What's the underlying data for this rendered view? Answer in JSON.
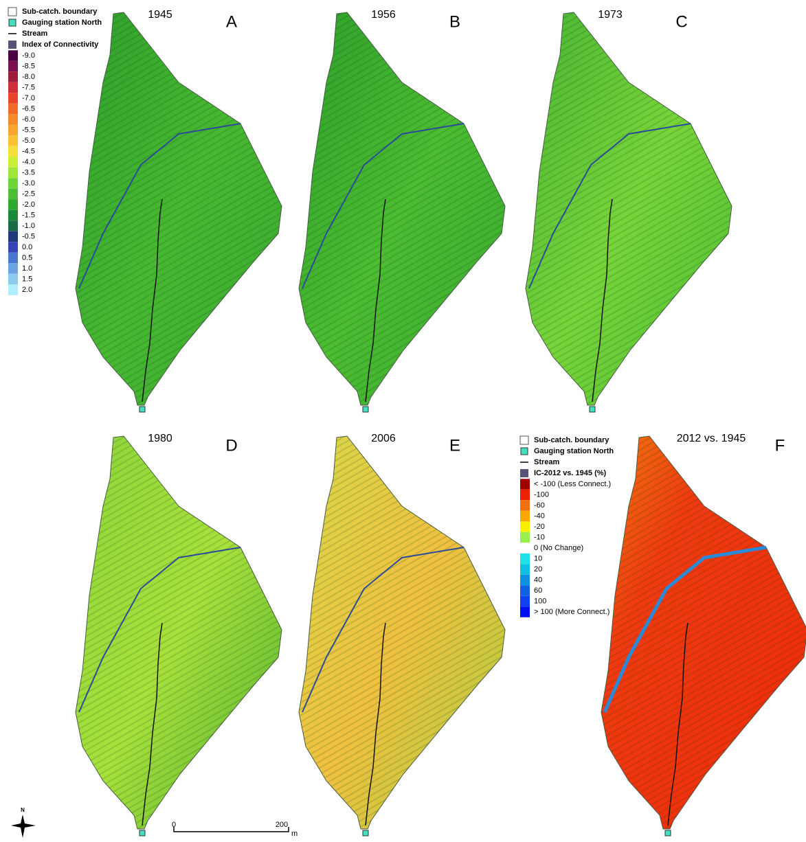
{
  "panels": [
    {
      "year": "1945",
      "letter": "A"
    },
    {
      "year": "1956",
      "letter": "B"
    },
    {
      "year": "1973",
      "letter": "C"
    },
    {
      "year": "1980",
      "letter": "D"
    },
    {
      "year": "2006",
      "letter": "E"
    },
    {
      "year": "2012 vs. 1945",
      "letter": "F"
    }
  ],
  "legend_ic": {
    "boundary": "Sub-catch. boundary",
    "station": "Gauging station North",
    "stream": "Stream",
    "title": "Index of Connectivity",
    "items": [
      {
        "label": "-9.0",
        "color": "#4b0045"
      },
      {
        "label": "-8.5",
        "color": "#7a1050"
      },
      {
        "label": "-8.0",
        "color": "#a01c3c"
      },
      {
        "label": "-7.5",
        "color": "#d0303a"
      },
      {
        "label": "-7.0",
        "color": "#e8452c"
      },
      {
        "label": "-6.5",
        "color": "#f26a2a"
      },
      {
        "label": "-6.0",
        "color": "#f58a2b"
      },
      {
        "label": "-5.5",
        "color": "#f7a52c"
      },
      {
        "label": "-5.0",
        "color": "#f9c32f"
      },
      {
        "label": "-4.5",
        "color": "#f5e03a"
      },
      {
        "label": "-4.0",
        "color": "#c8ee3a"
      },
      {
        "label": "-3.5",
        "color": "#a0e63a"
      },
      {
        "label": "-3.0",
        "color": "#6fd43a"
      },
      {
        "label": "-2.5",
        "color": "#4cbe35"
      },
      {
        "label": "-2.0",
        "color": "#2ea82f"
      },
      {
        "label": "-1.5",
        "color": "#1a8a38"
      },
      {
        "label": "-1.0",
        "color": "#1a6a48"
      },
      {
        "label": "-0.5",
        "color": "#1e3a78"
      },
      {
        "label": "0.0",
        "color": "#3246b4"
      },
      {
        "label": "0.5",
        "color": "#4a78d0"
      },
      {
        "label": "1.0",
        "color": "#6aa4e0"
      },
      {
        "label": "1.5",
        "color": "#8ccaf0"
      },
      {
        "label": "2.0",
        "color": "#b0eefc"
      }
    ]
  },
  "legend_change": {
    "boundary": "Sub-catch. boundary",
    "station": "Gauging station North",
    "stream": "Stream",
    "title": "IC-2012 vs. 1945 (%)",
    "items": [
      {
        "label": "< -100 (Less Connect.)",
        "color": "#a00000"
      },
      {
        "label": "-100",
        "color": "#ee2000"
      },
      {
        "label": "-60",
        "color": "#f07010"
      },
      {
        "label": "-40",
        "color": "#f8a800"
      },
      {
        "label": "-20",
        "color": "#f8f000"
      },
      {
        "label": "-10",
        "color": "#98f050"
      },
      {
        "label": "0 (No Change)",
        "color": "#ffffff"
      },
      {
        "label": "10",
        "color": "#20e0e8"
      },
      {
        "label": "20",
        "color": "#10c0e0"
      },
      {
        "label": "40",
        "color": "#1090e0"
      },
      {
        "label": "60",
        "color": "#1060e0"
      },
      {
        "label": "100",
        "color": "#1040f0"
      },
      {
        "label": "> 100 (More Connect.)",
        "color": "#0010f0"
      }
    ]
  },
  "scale_bar": {
    "start": "0",
    "end": "200",
    "unit": "m"
  },
  "north": "N"
}
